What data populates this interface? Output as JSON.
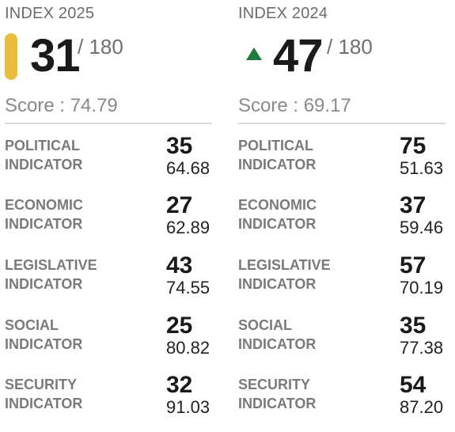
{
  "colors": {
    "rank_bar": "#e9bd3b",
    "up_arrow": "#1f7a3e"
  },
  "index_2025": {
    "title": "INDEX 2025",
    "rank": "31",
    "total": "/ 180",
    "score": "Score : 74.79",
    "indicators": [
      {
        "label": "POLITICAL\nINDICATOR",
        "rank": "35",
        "score": "64.68"
      },
      {
        "label": "ECONOMIC\nINDICATOR",
        "rank": "27",
        "score": "62.89"
      },
      {
        "label": "LEGISLATIVE\nINDICATOR",
        "rank": "43",
        "score": "74.55"
      },
      {
        "label": "SOCIAL\nINDICATOR",
        "rank": "25",
        "score": "80.82"
      },
      {
        "label": "SECURITY\nINDICATOR",
        "rank": "32",
        "score": "91.03"
      }
    ]
  },
  "index_2024": {
    "title": "INDEX 2024",
    "trend_icon": "up-arrow-icon",
    "rank": "47",
    "total": "/ 180",
    "score": "Score : 69.17",
    "indicators": [
      {
        "label": "POLITICAL\nINDICATOR",
        "rank": "75",
        "score": "51.63"
      },
      {
        "label": "ECONOMIC\nINDICATOR",
        "rank": "37",
        "score": "59.46"
      },
      {
        "label": "LEGISLATIVE\nINDICATOR",
        "rank": "57",
        "score": "70.19"
      },
      {
        "label": "SOCIAL\nINDICATOR",
        "rank": "35",
        "score": "77.38"
      },
      {
        "label": "SECURITY\nINDICATOR",
        "rank": "54",
        "score": "87.20"
      }
    ]
  }
}
